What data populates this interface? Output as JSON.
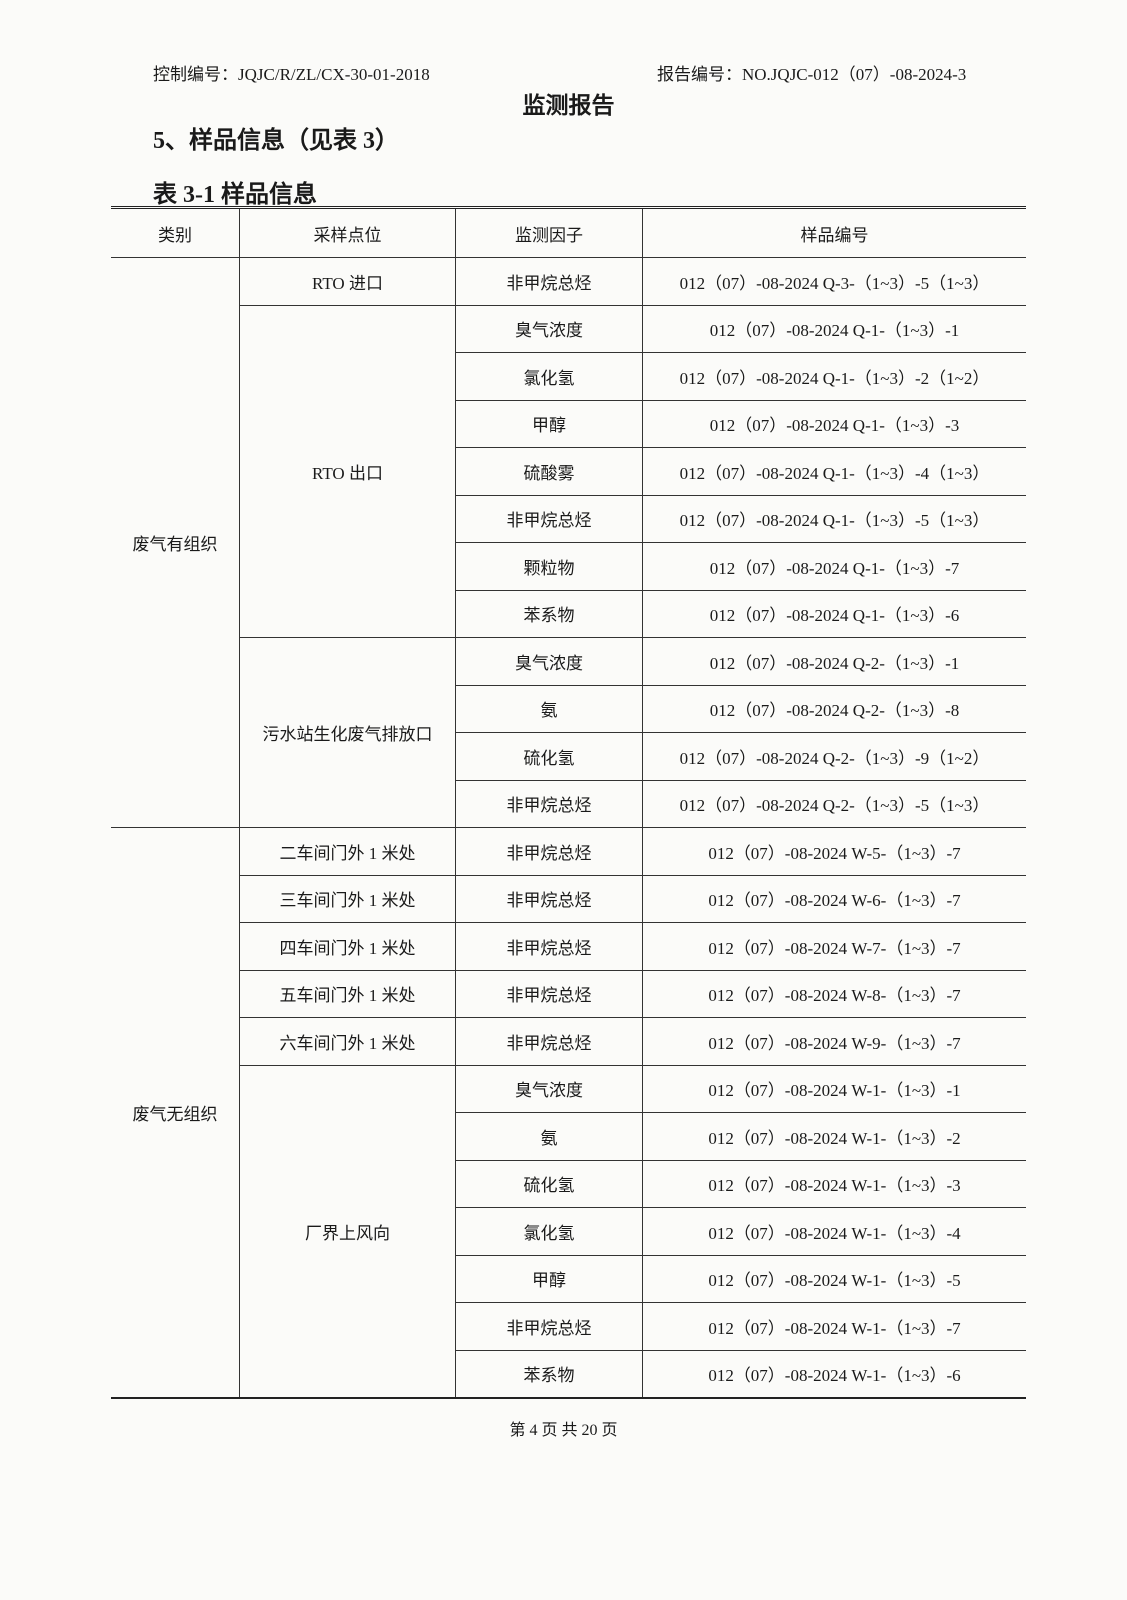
{
  "header": {
    "control_no": "控制编号：JQJC/R/ZL/CX-30-01-2018",
    "report_no": "报告编号：NO.JQJC-012（07）-08-2024-3",
    "title": "监测报告"
  },
  "section_title": "5、样品信息（见表 3）",
  "table_caption": "表 3-1  样品信息",
  "table": {
    "columns": [
      "类别",
      "采样点位",
      "监测因子",
      "样品编号"
    ],
    "groups": [
      {
        "category": "废气有组织",
        "locations": [
          {
            "label": "RTO 进口",
            "rows": [
              {
                "factor": "非甲烷总烃",
                "id": "012（07）-08-2024 Q-3-（1~3）-5（1~3）"
              }
            ]
          },
          {
            "label": "RTO 出口",
            "rows": [
              {
                "factor": "臭气浓度",
                "id": "012（07）-08-2024 Q-1-（1~3）-1"
              },
              {
                "factor": "氯化氢",
                "id": "012（07）-08-2024 Q-1-（1~3）-2（1~2）"
              },
              {
                "factor": "甲醇",
                "id": "012（07）-08-2024 Q-1-（1~3）-3"
              },
              {
                "factor": "硫酸雾",
                "id": "012（07）-08-2024 Q-1-（1~3）-4（1~3）"
              },
              {
                "factor": "非甲烷总烃",
                "id": "012（07）-08-2024 Q-1-（1~3）-5（1~3）"
              },
              {
                "factor": "颗粒物",
                "id": "012（07）-08-2024 Q-1-（1~3）-7"
              },
              {
                "factor": "苯系物",
                "id": "012（07）-08-2024 Q-1-（1~3）-6"
              }
            ]
          },
          {
            "label": "污水站生化废气排放口",
            "rows": [
              {
                "factor": "臭气浓度",
                "id": "012（07）-08-2024 Q-2-（1~3）-1"
              },
              {
                "factor": "氨",
                "id": "012（07）-08-2024 Q-2-（1~3）-8"
              },
              {
                "factor": "硫化氢",
                "id": "012（07）-08-2024 Q-2-（1~3）-9（1~2）"
              },
              {
                "factor": "非甲烷总烃",
                "id": "012（07）-08-2024 Q-2-（1~3）-5（1~3）"
              }
            ]
          }
        ]
      },
      {
        "category": "废气无组织",
        "locations": [
          {
            "label": "二车间门外 1 米处",
            "rows": [
              {
                "factor": "非甲烷总烃",
                "id": "012（07）-08-2024 W-5-（1~3）-7"
              }
            ]
          },
          {
            "label": "三车间门外 1 米处",
            "rows": [
              {
                "factor": "非甲烷总烃",
                "id": "012（07）-08-2024 W-6-（1~3）-7"
              }
            ]
          },
          {
            "label": "四车间门外 1 米处",
            "rows": [
              {
                "factor": "非甲烷总烃",
                "id": "012（07）-08-2024 W-7-（1~3）-7"
              }
            ]
          },
          {
            "label": "五车间门外 1 米处",
            "rows": [
              {
                "factor": "非甲烷总烃",
                "id": "012（07）-08-2024 W-8-（1~3）-7"
              }
            ]
          },
          {
            "label": "六车间门外 1 米处",
            "rows": [
              {
                "factor": "非甲烷总烃",
                "id": "012（07）-08-2024 W-9-（1~3）-7"
              }
            ]
          },
          {
            "label": "厂界上风向",
            "rows": [
              {
                "factor": "臭气浓度",
                "id": "012（07）-08-2024 W-1-（1~3）-1"
              },
              {
                "factor": "氨",
                "id": "012（07）-08-2024 W-1-（1~3）-2"
              },
              {
                "factor": "硫化氢",
                "id": "012（07）-08-2024 W-1-（1~3）-3"
              },
              {
                "factor": "氯化氢",
                "id": "012（07）-08-2024 W-1-（1~3）-4"
              },
              {
                "factor": "甲醇",
                "id": "012（07）-08-2024 W-1-（1~3）-5"
              },
              {
                "factor": "非甲烷总烃",
                "id": "012（07）-08-2024 W-1-（1~3）-7"
              },
              {
                "factor": "苯系物",
                "id": "012（07）-08-2024 W-1-（1~3）-6"
              }
            ]
          }
        ]
      }
    ]
  },
  "footer": "第 4 页 共 20 页"
}
